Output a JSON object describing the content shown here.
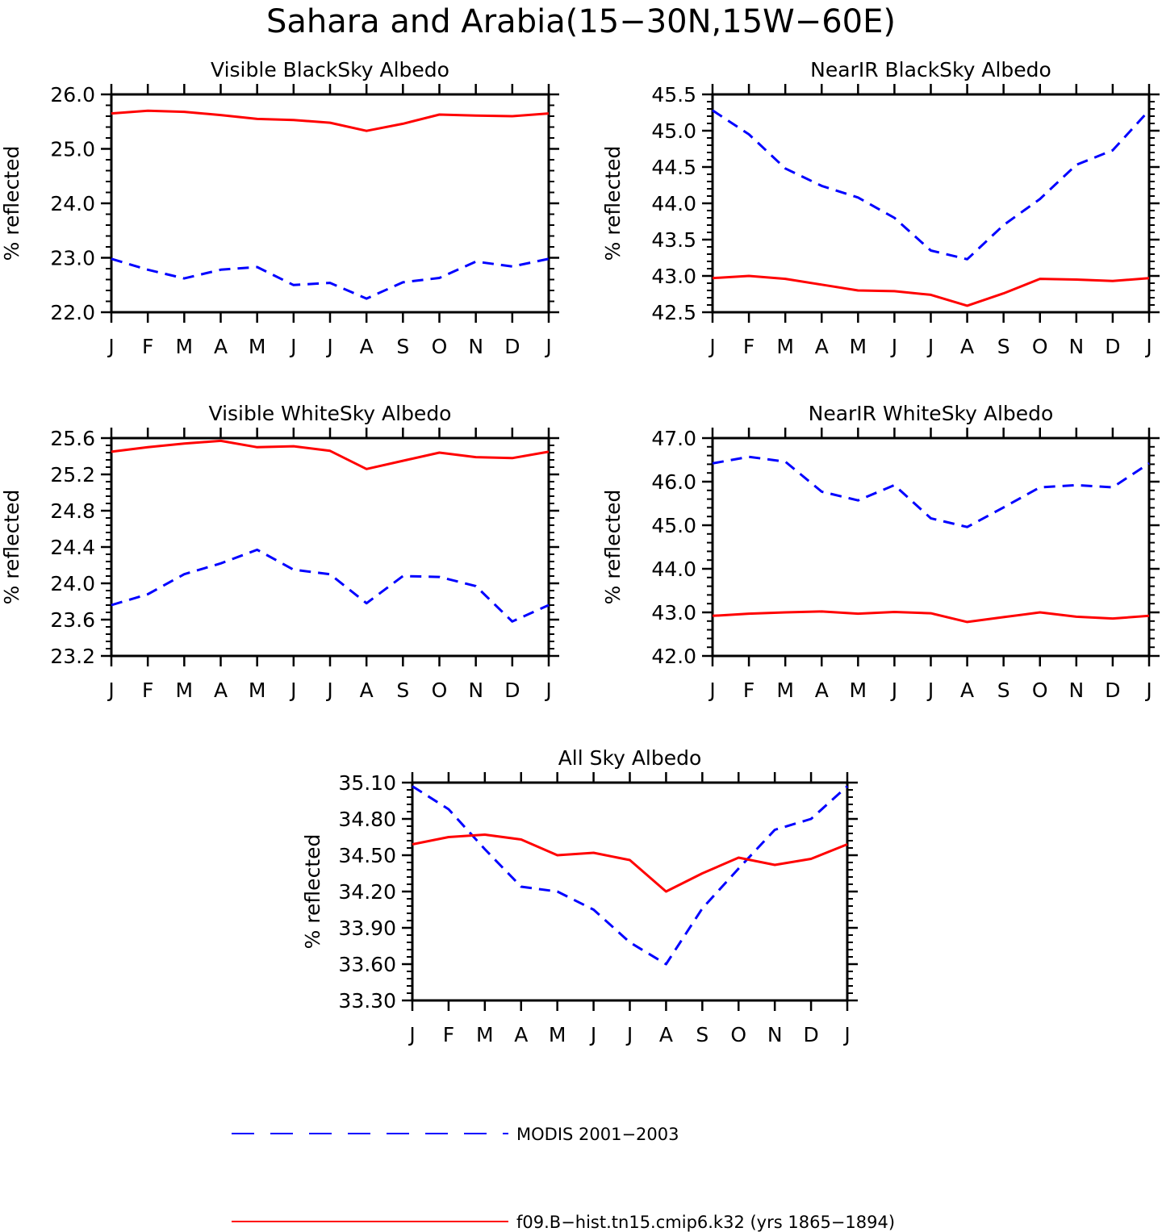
{
  "figure": {
    "title": "Sahara and Arabia(15−30N,15W−60E)"
  },
  "colors": {
    "modis": "#0000ff",
    "model": "#ff0000",
    "axes": "#000000"
  },
  "chart_data": [
    {
      "type": "line",
      "title": "Visible BlackSky Albedo",
      "ylabel": "% reflected",
      "xlabel": "",
      "categories": [
        "J",
        "F",
        "M",
        "A",
        "M",
        "J",
        "J",
        "A",
        "S",
        "O",
        "N",
        "D",
        "J"
      ],
      "yticks": [
        "22.0",
        "23.0",
        "24.0",
        "25.0",
        "26.0"
      ],
      "ylim": [
        22.0,
        26.0
      ],
      "grid": false,
      "series": [
        {
          "name": "MODIS 2001−2003",
          "style": "dashed",
          "color": "#0000ff",
          "values": [
            22.98,
            22.78,
            22.62,
            22.78,
            22.83,
            22.5,
            22.54,
            22.25,
            22.55,
            22.63,
            22.93,
            22.84,
            22.98
          ]
        },
        {
          "name": "f09.B−hist.tn15.cmip6.k32 (yrs 1865−1894)",
          "style": "solid",
          "color": "#ff0000",
          "values": [
            25.65,
            25.7,
            25.68,
            25.62,
            25.55,
            25.53,
            25.48,
            25.33,
            25.46,
            25.63,
            25.61,
            25.6,
            25.65
          ]
        }
      ]
    },
    {
      "type": "line",
      "title": "NearIR BlackSky Albedo",
      "ylabel": "% reflected",
      "xlabel": "",
      "categories": [
        "J",
        "F",
        "M",
        "A",
        "M",
        "J",
        "J",
        "A",
        "S",
        "O",
        "N",
        "D",
        "J"
      ],
      "yticks": [
        "42.5",
        "43.0",
        "43.5",
        "44.0",
        "44.5",
        "45.0",
        "45.5"
      ],
      "ylim": [
        42.5,
        45.5
      ],
      "grid": false,
      "series": [
        {
          "name": "MODIS 2001−2003",
          "style": "dashed",
          "color": "#0000ff",
          "values": [
            45.28,
            44.95,
            44.48,
            44.24,
            44.08,
            43.8,
            43.35,
            43.23,
            43.7,
            44.06,
            44.53,
            44.73,
            45.28
          ]
        },
        {
          "name": "f09.B−hist.tn15.cmip6.k32 (yrs 1865−1894)",
          "style": "solid",
          "color": "#ff0000",
          "values": [
            42.97,
            43.0,
            42.96,
            42.88,
            42.8,
            42.79,
            42.74,
            42.59,
            42.76,
            42.96,
            42.95,
            42.93,
            42.97
          ]
        }
      ]
    },
    {
      "type": "line",
      "title": "Visible WhiteSky Albedo",
      "ylabel": "% reflected",
      "xlabel": "",
      "categories": [
        "J",
        "F",
        "M",
        "A",
        "M",
        "J",
        "J",
        "A",
        "S",
        "O",
        "N",
        "D",
        "J"
      ],
      "yticks": [
        "23.2",
        "23.6",
        "24.0",
        "24.4",
        "24.8",
        "25.2",
        "25.6"
      ],
      "ylim": [
        23.2,
        25.6
      ],
      "grid": false,
      "series": [
        {
          "name": "MODIS 2001−2003",
          "style": "dashed",
          "color": "#0000ff",
          "values": [
            23.76,
            23.88,
            24.1,
            24.22,
            24.37,
            24.15,
            24.1,
            23.78,
            24.08,
            24.07,
            23.97,
            23.58,
            23.76
          ]
        },
        {
          "name": "f09.B−hist.tn15.cmip6.k32 (yrs 1865−1894)",
          "style": "solid",
          "color": "#ff0000",
          "values": [
            25.45,
            25.5,
            25.54,
            25.57,
            25.5,
            25.51,
            25.46,
            25.26,
            25.35,
            25.44,
            25.39,
            25.38,
            25.45
          ]
        }
      ]
    },
    {
      "type": "line",
      "title": "NearIR WhiteSky Albedo",
      "ylabel": "% reflected",
      "xlabel": "",
      "categories": [
        "J",
        "F",
        "M",
        "A",
        "M",
        "J",
        "J",
        "A",
        "S",
        "O",
        "N",
        "D",
        "J"
      ],
      "yticks": [
        "42.0",
        "43.0",
        "44.0",
        "45.0",
        "46.0",
        "47.0"
      ],
      "ylim": [
        42.0,
        47.0
      ],
      "grid": false,
      "series": [
        {
          "name": "MODIS 2001−2003",
          "style": "dashed",
          "color": "#0000ff",
          "values": [
            46.42,
            46.57,
            46.46,
            45.77,
            45.57,
            45.92,
            45.16,
            44.96,
            45.41,
            45.87,
            45.92,
            45.87,
            46.42
          ]
        },
        {
          "name": "f09.B−hist.tn15.cmip6.k32 (yrs 1865−1894)",
          "style": "solid",
          "color": "#ff0000",
          "values": [
            42.92,
            42.97,
            43.0,
            43.02,
            42.97,
            43.01,
            42.98,
            42.78,
            42.89,
            43.0,
            42.9,
            42.86,
            42.92
          ]
        }
      ]
    },
    {
      "type": "line",
      "title": "All Sky Albedo",
      "ylabel": "% reflected",
      "xlabel": "",
      "categories": [
        "J",
        "F",
        "M",
        "A",
        "M",
        "J",
        "J",
        "A",
        "S",
        "O",
        "N",
        "D",
        "J"
      ],
      "yticks": [
        "33.30",
        "33.60",
        "33.90",
        "34.20",
        "34.50",
        "34.80",
        "35.10"
      ],
      "ylim": [
        33.3,
        35.1
      ],
      "grid": false,
      "series": [
        {
          "name": "MODIS 2001−2003",
          "style": "dashed",
          "color": "#0000ff",
          "values": [
            35.07,
            34.88,
            34.55,
            34.24,
            34.2,
            34.05,
            33.78,
            33.6,
            34.06,
            34.39,
            34.71,
            34.8,
            35.07
          ]
        },
        {
          "name": "f09.B−hist.tn15.cmip6.k32 (yrs 1865−1894)",
          "style": "solid",
          "color": "#ff0000",
          "values": [
            34.59,
            34.65,
            34.67,
            34.63,
            34.5,
            34.52,
            34.46,
            34.2,
            34.35,
            34.48,
            34.42,
            34.47,
            34.59
          ]
        }
      ]
    }
  ],
  "legend": {
    "placement": "bottom",
    "entries": [
      {
        "label": "MODIS 2001−2003",
        "style": "dashed",
        "color": "#0000ff"
      },
      {
        "label": "f09.B−hist.tn15.cmip6.k32 (yrs 1865−1894)",
        "style": "solid",
        "color": "#ff0000"
      }
    ]
  }
}
